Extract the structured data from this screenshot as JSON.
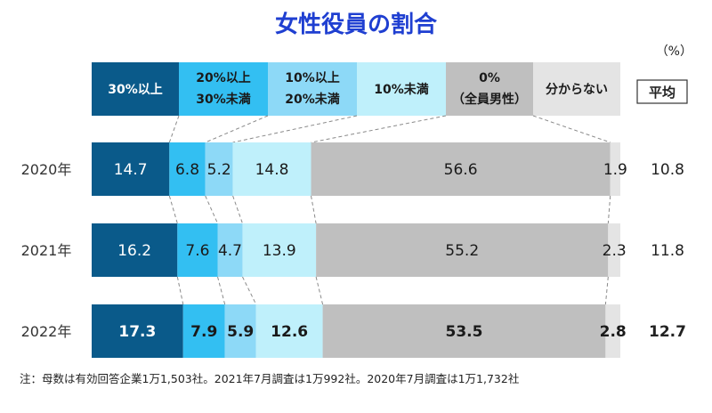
{
  "chart_data": {
    "type": "stacked-bar",
    "title": "女性役員の割合",
    "unit": "（%）",
    "categories": [
      "30%以上",
      "20%以上\n30%未満",
      "10%以上\n20%未満",
      "10%未満",
      "0%\n（全員男性）",
      "分からない"
    ],
    "years": [
      "2020年",
      "2021年",
      "2022年"
    ],
    "series": [
      {
        "year": "2020年",
        "values": [
          14.7,
          6.8,
          5.2,
          14.8,
          56.6,
          1.9
        ],
        "average": 10.8,
        "bold": false
      },
      {
        "year": "2021年",
        "values": [
          16.2,
          7.6,
          4.7,
          13.9,
          55.2,
          2.3
        ],
        "average": 11.8,
        "bold": false
      },
      {
        "year": "2022年",
        "values": [
          17.3,
          7.9,
          5.9,
          12.6,
          53.5,
          2.8
        ],
        "average": 12.7,
        "bold": true
      }
    ],
    "average_label": "平均",
    "colors": [
      "#0a5a8a",
      "#33bff2",
      "#8dd9f7",
      "#bff0fb",
      "#bfbfbf",
      "#e4e4e4"
    ],
    "label_colors": [
      "#ffffff",
      "#1a1a1a",
      "#1a1a1a",
      "#1a1a1a",
      "#1a1a1a",
      "#1a1a1a"
    ]
  },
  "note": "注：母数は有効回答企業1万1,503社。2021年7月調査は1万992社。2020年7月調査は1万1,732社"
}
